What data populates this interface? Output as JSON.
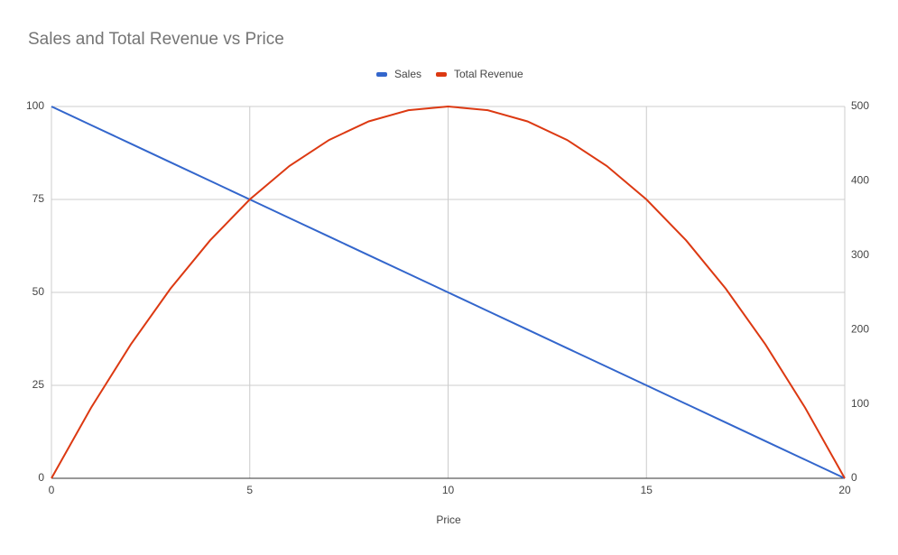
{
  "chart_data": {
    "type": "line",
    "title": "Sales and Total Revenue vs Price",
    "x_label": "Price",
    "x": [
      0,
      1,
      2,
      3,
      4,
      5,
      6,
      7,
      8,
      9,
      10,
      11,
      12,
      13,
      14,
      15,
      16,
      17,
      18,
      19,
      20
    ],
    "series": [
      {
        "name": "Sales",
        "color": "#3366cc",
        "values": [
          100,
          95,
          90,
          85,
          80,
          75,
          70,
          65,
          60,
          55,
          50,
          45,
          40,
          35,
          30,
          25,
          20,
          15,
          10,
          5,
          0
        ]
      },
      {
        "name": "Total Revenue",
        "color": "#dc3912",
        "axis": "y2",
        "values": [
          0,
          95,
          180,
          255,
          320,
          375,
          420,
          455,
          480,
          495,
          500,
          495,
          480,
          455,
          420,
          375,
          320,
          255,
          180,
          95,
          0
        ]
      }
    ],
    "xlim": [
      0,
      20
    ],
    "xticks": [
      0,
      5,
      10,
      15,
      20
    ],
    "ylim": [
      0,
      100
    ],
    "yticks": [
      0,
      25,
      50,
      75,
      100
    ],
    "y2lim": [
      0,
      500
    ],
    "y2ticks": [
      0,
      100,
      200,
      300,
      400,
      500
    ],
    "grid": true,
    "legend": "top"
  }
}
